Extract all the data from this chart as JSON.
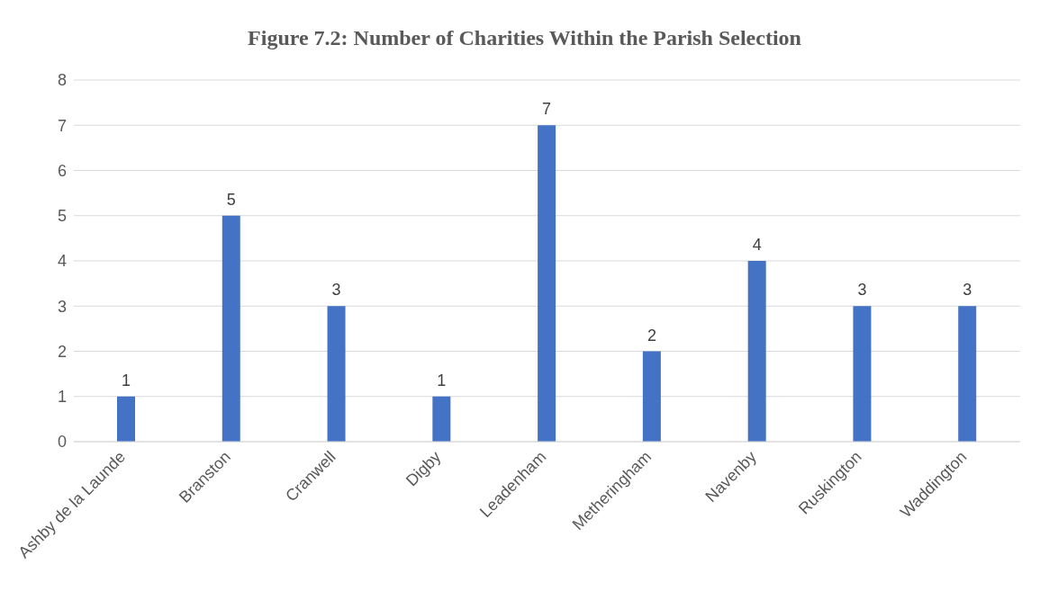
{
  "chart_data": {
    "type": "bar",
    "title": "Figure 7.2: Number of Charities Within the Parish Selection",
    "categories": [
      "Ashby de la Launde",
      "Branston",
      "Cranwell",
      "Digby",
      "Leadenham",
      "Metheringham",
      "Navenby",
      "Ruskington",
      "Waddington"
    ],
    "values": [
      1,
      5,
      3,
      1,
      7,
      2,
      4,
      3,
      3
    ],
    "color": "#4472c4",
    "ylim": [
      0,
      8
    ],
    "yticks": [
      0,
      1,
      2,
      3,
      4,
      5,
      6,
      7,
      8
    ],
    "grid": "y",
    "data_labels": true
  }
}
